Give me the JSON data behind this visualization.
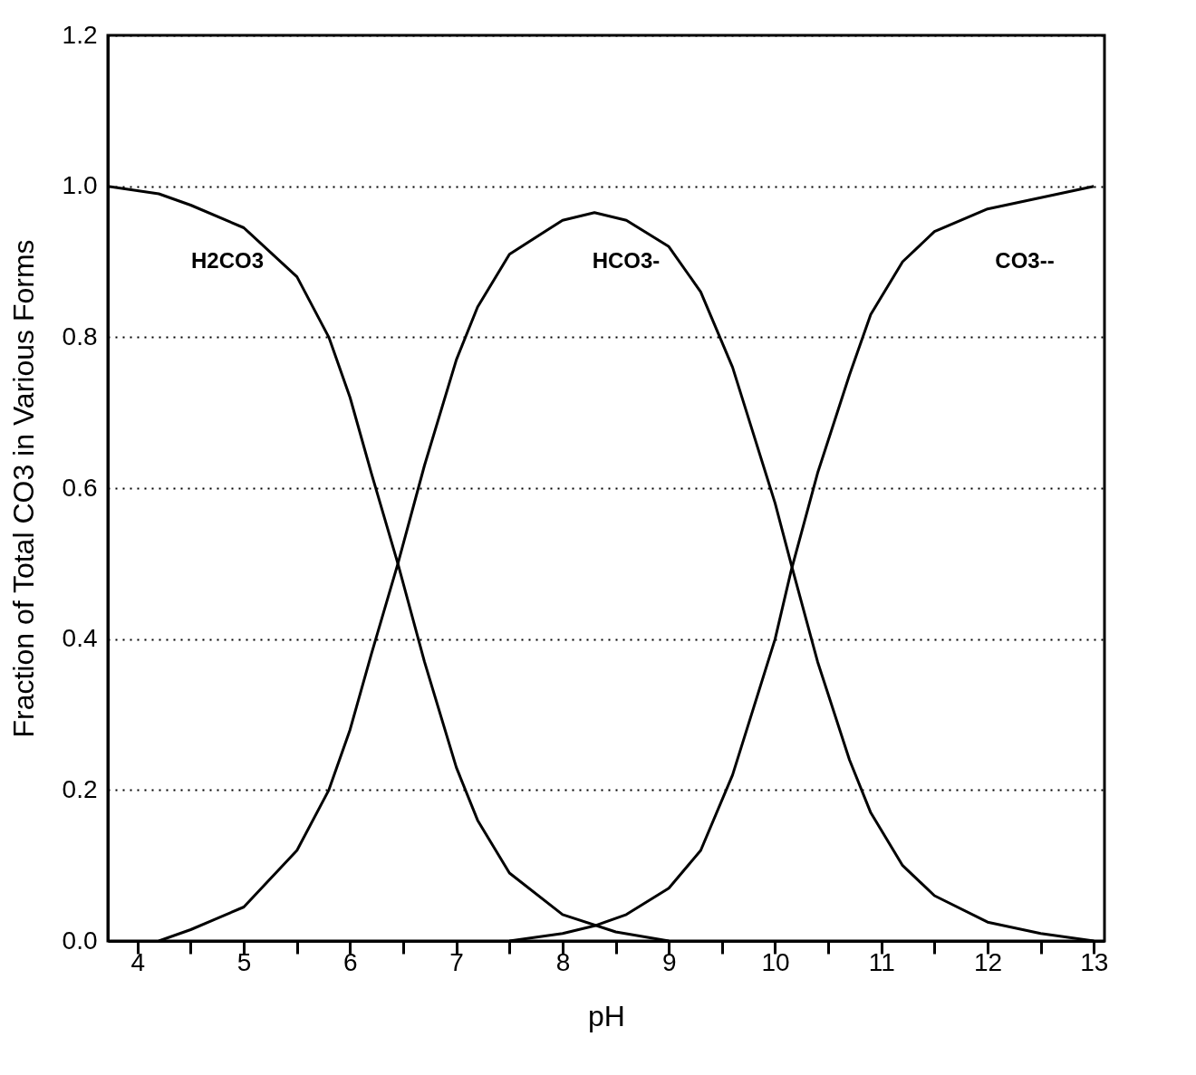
{
  "chart_data": {
    "type": "line",
    "xlabel": "pH",
    "ylabel": "Fraction of Total CO3 in Various Forms",
    "xlim": [
      3.72,
      13.1
    ],
    "ylim": [
      0,
      1.2
    ],
    "xticks": [
      4,
      {
        "value": 4.5,
        "label": null
      },
      5,
      {
        "value": 5.5,
        "label": null
      },
      6,
      {
        "value": 6.5,
        "label": null
      },
      7,
      {
        "value": 7.5,
        "label": null
      },
      8,
      {
        "value": 8.5,
        "label": null
      },
      9,
      {
        "value": 9.5,
        "label": null
      },
      10,
      {
        "value": 10.5,
        "label": null
      },
      11,
      {
        "value": 11.5,
        "label": null
      },
      12,
      {
        "value": 12.5,
        "label": null
      },
      13
    ],
    "yticks": [
      {
        "value": 0,
        "label": "0.0"
      },
      {
        "value": 0.2,
        "label": "0.2"
      },
      {
        "value": 0.4,
        "label": "0.4"
      },
      {
        "value": 0.6,
        "label": "0.6"
      },
      {
        "value": 0.8,
        "label": "0.8"
      },
      {
        "value": 1,
        "label": "1.0"
      },
      {
        "value": 1.2,
        "label": "1.2"
      }
    ],
    "grid": "y",
    "marker": "none",
    "line_style": "solid",
    "series": [
      {
        "name": "H2CO3",
        "color": "#000000",
        "x": [
          3.72,
          4.2,
          4.5,
          5.0,
          5.5,
          5.8,
          6.0,
          6.2,
          6.45,
          6.7,
          7.0,
          7.2,
          7.5,
          8.0,
          8.5,
          9.0
        ],
        "values": [
          1.0,
          0.99,
          0.975,
          0.945,
          0.88,
          0.8,
          0.72,
          0.62,
          0.5,
          0.37,
          0.23,
          0.16,
          0.09,
          0.035,
          0.012,
          0.0
        ]
      },
      {
        "name": "HCO3-",
        "color": "#000000",
        "x": [
          4.2,
          4.5,
          5.0,
          5.5,
          5.8,
          6.0,
          6.2,
          6.45,
          6.7,
          7.0,
          7.2,
          7.5,
          8.0,
          8.3,
          8.6,
          9.0,
          9.3,
          9.6,
          9.8,
          10.0,
          10.15,
          10.4,
          10.7,
          10.9,
          11.2,
          11.5,
          12.0,
          12.5,
          13.0
        ],
        "values": [
          0.0,
          0.015,
          0.045,
          0.12,
          0.2,
          0.28,
          0.38,
          0.5,
          0.63,
          0.77,
          0.84,
          0.91,
          0.955,
          0.965,
          0.955,
          0.92,
          0.86,
          0.76,
          0.67,
          0.58,
          0.5,
          0.37,
          0.24,
          0.17,
          0.1,
          0.06,
          0.025,
          0.01,
          0.0
        ]
      },
      {
        "name": "CO3--",
        "color": "#000000",
        "x": [
          7.5,
          8.0,
          8.3,
          8.6,
          9.0,
          9.3,
          9.6,
          9.8,
          10.0,
          10.15,
          10.4,
          10.7,
          10.9,
          11.2,
          11.5,
          12.0,
          12.5,
          13.0
        ],
        "values": [
          0.0,
          0.01,
          0.02,
          0.035,
          0.07,
          0.12,
          0.22,
          0.31,
          0.4,
          0.49,
          0.62,
          0.75,
          0.83,
          0.9,
          0.94,
          0.97,
          0.985,
          1.0
        ]
      }
    ]
  }
}
